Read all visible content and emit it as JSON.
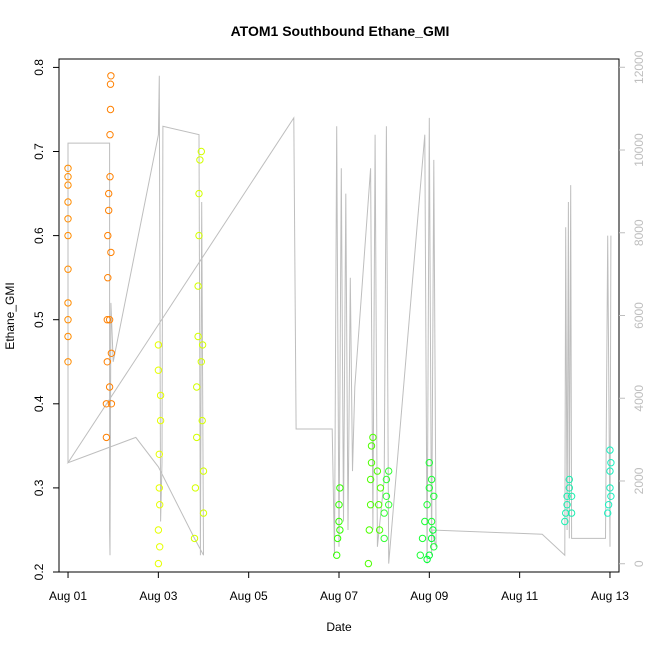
{
  "chart_data": {
    "type": "scatter",
    "title": "ATOM1 Southbound Ethane_GMI",
    "xlabel": "Date",
    "ylabel": "Ethane_GMI",
    "xlim": [
      -0.2,
      12.2
    ],
    "ylim": [
      0.2,
      0.81
    ],
    "y2lim": [
      -200,
      12200
    ],
    "x_ticks": [
      {
        "value": 0,
        "label": "Aug 01"
      },
      {
        "value": 2,
        "label": "Aug 03"
      },
      {
        "value": 4,
        "label": "Aug 05"
      },
      {
        "value": 6,
        "label": "Aug 07"
      },
      {
        "value": 8,
        "label": "Aug 09"
      },
      {
        "value": 10,
        "label": "Aug 11"
      },
      {
        "value": 12,
        "label": "Aug 13"
      }
    ],
    "y_ticks": [
      "0.2",
      "0.3",
      "0.4",
      "0.5",
      "0.6",
      "0.7",
      "0.8"
    ],
    "y2_ticks": [
      "0",
      "2000",
      "4000",
      "6000",
      "8000",
      "10000",
      "12000"
    ],
    "altitude_color": "#bebebe",
    "series": [
      {
        "color": "#FF8C00",
        "points": [
          [
            0.0,
            0.45
          ],
          [
            0.0,
            0.48
          ],
          [
            0.0,
            0.52
          ],
          [
            0.0,
            0.56
          ],
          [
            0.0,
            0.6
          ],
          [
            0.0,
            0.64
          ],
          [
            0.0,
            0.67
          ],
          [
            0.0,
            0.68
          ],
          [
            0.0,
            0.66
          ],
          [
            0.0,
            0.5
          ],
          [
            0.0,
            0.62
          ]
        ]
      },
      {
        "color": "#FF8000",
        "points": [
          [
            0.85,
            0.36
          ],
          [
            0.85,
            0.4
          ],
          [
            0.87,
            0.45
          ],
          [
            0.87,
            0.5
          ],
          [
            0.88,
            0.55
          ],
          [
            0.88,
            0.6
          ],
          [
            0.9,
            0.63
          ],
          [
            0.9,
            0.65
          ],
          [
            0.92,
            0.5
          ],
          [
            0.92,
            0.42
          ],
          [
            0.93,
            0.67
          ],
          [
            0.93,
            0.72
          ],
          [
            0.94,
            0.75
          ],
          [
            0.94,
            0.78
          ],
          [
            0.95,
            0.79
          ],
          [
            0.95,
            0.58
          ],
          [
            0.96,
            0.46
          ],
          [
            0.96,
            0.4
          ]
        ]
      },
      {
        "color": "#E6FF00",
        "points": [
          [
            2.0,
            0.21
          ],
          [
            2.0,
            0.25
          ],
          [
            2.02,
            0.3
          ],
          [
            2.02,
            0.34
          ],
          [
            2.05,
            0.38
          ],
          [
            2.05,
            0.41
          ],
          [
            2.0,
            0.44
          ],
          [
            2.0,
            0.47
          ],
          [
            2.03,
            0.28
          ],
          [
            2.03,
            0.23
          ]
        ]
      },
      {
        "color": "#D4FF00",
        "points": [
          [
            2.8,
            0.24
          ],
          [
            2.82,
            0.3
          ],
          [
            2.85,
            0.36
          ],
          [
            2.85,
            0.42
          ],
          [
            2.88,
            0.48
          ],
          [
            2.88,
            0.54
          ],
          [
            2.9,
            0.6
          ],
          [
            2.9,
            0.65
          ],
          [
            2.92,
            0.69
          ],
          [
            2.95,
            0.7
          ],
          [
            2.95,
            0.45
          ],
          [
            2.97,
            0.38
          ],
          [
            3.0,
            0.32
          ],
          [
            3.0,
            0.27
          ],
          [
            2.98,
            0.47
          ]
        ]
      },
      {
        "color": "#33FF00",
        "points": [
          [
            5.95,
            0.22
          ],
          [
            5.97,
            0.24
          ],
          [
            6.0,
            0.26
          ],
          [
            6.0,
            0.28
          ],
          [
            6.02,
            0.3
          ],
          [
            6.02,
            0.25
          ]
        ]
      },
      {
        "color": "#4DFF00",
        "points": [
          [
            6.65,
            0.21
          ],
          [
            6.67,
            0.25
          ],
          [
            6.7,
            0.28
          ],
          [
            6.7,
            0.31
          ],
          [
            6.72,
            0.33
          ],
          [
            6.72,
            0.35
          ],
          [
            6.75,
            0.36
          ],
          [
            6.85,
            0.32
          ],
          [
            6.88,
            0.28
          ],
          [
            6.9,
            0.25
          ],
          [
            6.92,
            0.3
          ]
        ]
      },
      {
        "color": "#33FF33",
        "points": [
          [
            7.0,
            0.24
          ],
          [
            7.0,
            0.27
          ],
          [
            7.05,
            0.29
          ],
          [
            7.05,
            0.31
          ],
          [
            7.1,
            0.32
          ],
          [
            7.1,
            0.28
          ]
        ]
      },
      {
        "color": "#1AFF33",
        "points": [
          [
            7.8,
            0.22
          ],
          [
            7.85,
            0.24
          ],
          [
            7.9,
            0.26
          ],
          [
            7.95,
            0.28
          ],
          [
            8.0,
            0.3
          ],
          [
            8.0,
            0.33
          ],
          [
            8.05,
            0.31
          ],
          [
            8.05,
            0.26
          ],
          [
            8.1,
            0.23
          ],
          [
            8.1,
            0.29
          ]
        ]
      },
      {
        "color": "#00FF33",
        "points": [
          [
            7.95,
            0.215
          ],
          [
            8.0,
            0.22
          ],
          [
            8.05,
            0.24
          ],
          [
            8.08,
            0.25
          ]
        ]
      },
      {
        "color": "#1AF0B0",
        "points": [
          [
            11.0,
            0.26
          ],
          [
            11.02,
            0.27
          ],
          [
            11.05,
            0.28
          ],
          [
            11.05,
            0.29
          ],
          [
            11.1,
            0.3
          ],
          [
            11.1,
            0.31
          ],
          [
            11.15,
            0.29
          ],
          [
            11.15,
            0.27
          ]
        ]
      },
      {
        "color": "#1AF0C0",
        "points": [
          [
            11.95,
            0.27
          ],
          [
            11.97,
            0.28
          ],
          [
            12.0,
            0.3
          ],
          [
            12.0,
            0.32
          ],
          [
            12.02,
            0.33
          ],
          [
            12.0,
            0.345
          ],
          [
            12.02,
            0.29
          ]
        ]
      }
    ],
    "altitude": [
      [
        0.0,
        0.33
      ],
      [
        0.0,
        0.71
      ],
      [
        0.92,
        0.71
      ],
      [
        0.92,
        0.25
      ],
      [
        0.93,
        0.22
      ],
      [
        0.95,
        0.52
      ],
      [
        1.0,
        0.45
      ],
      [
        2.0,
        0.72
      ],
      [
        2.02,
        0.79
      ],
      [
        2.05,
        0.26
      ],
      [
        2.08,
        0.33
      ],
      [
        2.1,
        0.73
      ],
      [
        2.9,
        0.72
      ],
      [
        2.93,
        0.22
      ],
      [
        2.96,
        0.64
      ],
      [
        3.0,
        0.22
      ],
      [
        2.8,
        0.24
      ],
      [
        2.0,
        0.325
      ],
      [
        1.5,
        0.36
      ],
      [
        0.0,
        0.33
      ],
      [
        5.0,
        0.74
      ],
      [
        5.05,
        0.37
      ],
      [
        5.85,
        0.37
      ],
      [
        5.9,
        0.22
      ],
      [
        5.95,
        0.73
      ],
      [
        6.0,
        0.23
      ],
      [
        6.05,
        0.68
      ],
      [
        6.1,
        0.26
      ],
      [
        6.15,
        0.65
      ],
      [
        6.2,
        0.25
      ],
      [
        6.25,
        0.55
      ],
      [
        6.3,
        0.32
      ],
      [
        6.35,
        0.42
      ],
      [
        6.7,
        0.68
      ],
      [
        6.75,
        0.25
      ],
      [
        6.8,
        0.72
      ],
      [
        6.85,
        0.23
      ],
      [
        7.0,
        0.31
      ],
      [
        7.05,
        0.73
      ],
      [
        7.1,
        0.21
      ],
      [
        7.9,
        0.72
      ],
      [
        7.95,
        0.21
      ],
      [
        8.0,
        0.74
      ],
      [
        8.05,
        0.22
      ],
      [
        8.1,
        0.69
      ],
      [
        8.15,
        0.23
      ],
      [
        8.05,
        0.25
      ],
      [
        10.5,
        0.245
      ],
      [
        11.0,
        0.22
      ],
      [
        11.02,
        0.61
      ],
      [
        11.05,
        0.25
      ],
      [
        11.08,
        0.64
      ],
      [
        11.1,
        0.24
      ],
      [
        11.13,
        0.66
      ],
      [
        11.15,
        0.24
      ],
      [
        11.9,
        0.24
      ],
      [
        11.95,
        0.6
      ],
      [
        12.0,
        0.23
      ],
      [
        12.02,
        0.6
      ]
    ]
  }
}
